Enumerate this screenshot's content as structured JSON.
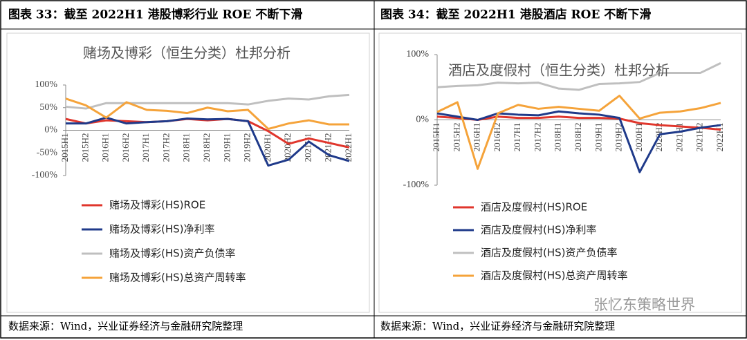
{
  "panels": [
    {
      "header": "图表 33：截至 2022H1 港股博彩行业 ROE 不断下滑",
      "source": "数据来源：Wind，兴业证券经济与金融研究院整理"
    },
    {
      "header": "图表 34：截至 2022H1 港股酒店 ROE 不断下滑",
      "source": "数据来源：Wind，兴业证券经济与金融研究院整理"
    }
  ],
  "watermark": "张忆东策略世界",
  "chart_data": [
    {
      "type": "line",
      "title": "赌场及博彩（恒生分类）杜邦分析",
      "categories": [
        "2015H1",
        "2015H2",
        "2016H1",
        "2016H2",
        "2017H1",
        "2017H2",
        "2018H1",
        "2018H2",
        "2019H1",
        "2019H2",
        "2020H1",
        "2020H2",
        "2021H1",
        "2021H2",
        "2022H1"
      ],
      "ylim": [
        -100,
        100
      ],
      "yticks": [
        {
          "value": -100,
          "label": "-100%"
        },
        {
          "value": -50,
          "label": "-50%"
        },
        {
          "value": 0,
          "label": "0%"
        },
        {
          "value": 50,
          "label": "50%"
        },
        {
          "value": 100,
          "label": "100%"
        }
      ],
      "series": [
        {
          "name": "赌场及博彩(HS)ROE",
          "color": "#e0362c",
          "values": [
            25,
            15,
            22,
            20,
            18,
            20,
            25,
            22,
            25,
            20,
            -2,
            -30,
            -18,
            -28,
            -38
          ]
        },
        {
          "name": "赌场及博彩(HS)净利率",
          "color": "#1f3a8a",
          "values": [
            15,
            15,
            28,
            15,
            18,
            20,
            26,
            24,
            25,
            20,
            -78,
            -65,
            -25,
            -55,
            -68
          ]
        },
        {
          "name": "赌场及博彩(HS)资产负债率",
          "color": "#bfbfbf",
          "values": [
            52,
            48,
            60,
            60,
            60,
            60,
            60,
            60,
            60,
            57,
            65,
            70,
            68,
            75,
            78
          ]
        },
        {
          "name": "赌场及博彩(HS)总资产周转率",
          "color": "#f5a33a",
          "values": [
            70,
            55,
            28,
            62,
            45,
            43,
            38,
            50,
            42,
            45,
            3,
            15,
            22,
            13,
            13
          ]
        }
      ]
    },
    {
      "type": "line",
      "title": "酒店及度假村（恒生分类）杜邦分析",
      "categories": [
        "2015H1",
        "2015H2",
        "2016H1",
        "2016H2",
        "2017H1",
        "2017H2",
        "2018H1",
        "2018H2",
        "2019H1",
        "2019H2",
        "2020H1",
        "2020H2",
        "2021H1",
        "2021H2",
        "2022H1"
      ],
      "ylim": [
        -100,
        100
      ],
      "yticks": [
        {
          "value": -100,
          "label": "-100%"
        },
        {
          "value": 0,
          "label": "0%"
        },
        {
          "value": 100,
          "label": "100%"
        }
      ],
      "series": [
        {
          "name": "酒店及度假村(HS)ROE",
          "color": "#e0362c",
          "values": [
            5,
            3,
            0,
            5,
            3,
            3,
            5,
            3,
            3,
            2,
            -5,
            -8,
            -10,
            -12,
            -15
          ]
        },
        {
          "name": "酒店及度假村(HS)净利率",
          "color": "#1f3a8a",
          "values": [
            10,
            5,
            0,
            10,
            8,
            7,
            13,
            10,
            8,
            3,
            -80,
            -22,
            -18,
            -12,
            -8
          ]
        },
        {
          "name": "酒店及度假村(HS)资产负债率",
          "color": "#bfbfbf",
          "values": [
            50,
            52,
            53,
            57,
            56,
            57,
            48,
            46,
            55,
            56,
            58,
            72,
            72,
            72,
            87
          ]
        },
        {
          "name": "酒店及度假村(HS)总资产周转率",
          "color": "#f5a33a",
          "values": [
            12,
            27,
            -75,
            10,
            23,
            17,
            20,
            17,
            14,
            37,
            2,
            11,
            13,
            18,
            26
          ]
        }
      ]
    }
  ]
}
